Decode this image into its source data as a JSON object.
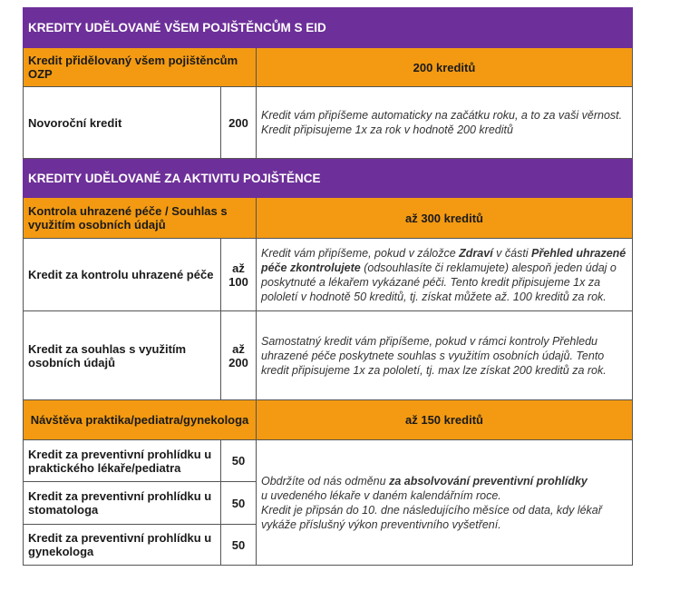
{
  "colors": {
    "purple": "#6d2f99",
    "orange": "#f39a12"
  },
  "section1": {
    "title": "KREDITY UDĚLOVANÉ VŠEM POJIŠTĚNCŮM S EID",
    "group": {
      "label": "Kredit přidělovaný všem pojištěncům OZP",
      "total": "200 kreditů"
    },
    "rows": [
      {
        "label": "Novoroční kredit",
        "value": "200",
        "desc": "Kredit vám připíšeme automaticky na začátku roku, a to za vaši věrnost. Kredit připisujeme 1x za rok v hodnotě 200 kreditů"
      }
    ]
  },
  "section2": {
    "title": "KREDITY UDĚLOVANÉ ZA AKTIVITU POJIŠTĚNCE",
    "group1": {
      "label": "Kontrola uhrazené péče / Souhlas s využitím osobních údajů",
      "total": "až 300 kreditů"
    },
    "rows": [
      {
        "label": "Kredit za kontrolu uhrazené péče",
        "value": "až 100",
        "desc": [
          "Kredit vám připíšeme, pokud v záložce ",
          "Zdraví",
          " v části ",
          "Přehled uhrazené péče zkontrolujete",
          " (odsouhlasíte či reklamujete) alespoň jeden údaj o poskytnuté a lékařem vykázané péči. Tento kredit připisujeme 1x za pololetí v hodnotě 50 kreditů, tj. získat můžete až. 100 kreditů za rok."
        ]
      },
      {
        "label": "Kredit za souhlas s využitím osobních údajů",
        "value": "až 200",
        "desc": "Samostatný kredit vám připíšeme, pokud v rámci kontroly Přehledu uhrazené péče poskytnete souhlas s využitím osobních údajů. Tento kredit připisujeme 1x za pololetí, tj. max lze získat 200 kreditů za rok."
      }
    ],
    "group2": {
      "label": "Návštěva praktika/pediatra/gynekologa",
      "total": "až 150 kreditů"
    },
    "prevention": [
      {
        "label": "Kredit za preventivní prohlídku u praktického lékaře/pediatra",
        "value": "50"
      },
      {
        "label": "Kredit za preventivní prohlídku u stomatologa",
        "value": "50"
      },
      {
        "label": "Kredit za preventivní prohlídku u gynekologa",
        "value": "50"
      }
    ],
    "prevention_desc": [
      "Obdržíte od nás odměnu ",
      "za absolvování preventivní prohlídky",
      " u uvedeného lékaře v daném kalendářním roce.",
      "Kredit je připsán do 10. dne následujícího měsíce od data, kdy lékař vykáže příslušný výkon preventivního vyšetření."
    ]
  }
}
